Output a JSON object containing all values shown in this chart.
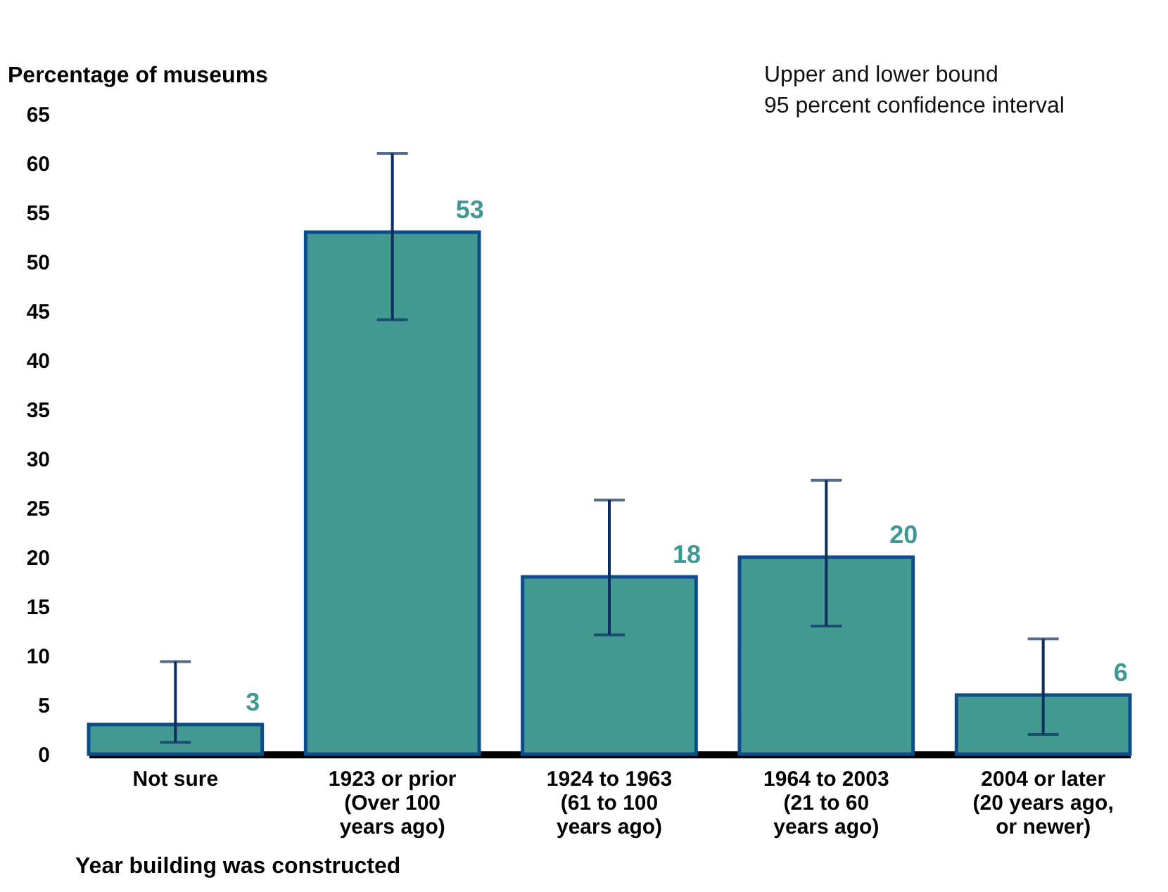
{
  "chart_data": {
    "type": "bar",
    "ylabel": "Percentage of museums",
    "xlabel": "Year building was constructed",
    "categories": [
      "Not sure",
      "1923 or prior\n(Over 100\nyears ago)",
      "1924 to 1963\n(61 to 100\nyears ago)",
      "1964 to 2003\n(21 to 60\nyears ago)",
      "2004 or later\n(20 years ago,\nor newer)"
    ],
    "values": [
      3,
      53,
      18,
      20,
      6
    ],
    "errors": [
      [
        1.2,
        9.4
      ],
      [
        44.1,
        61
      ],
      [
        12.1,
        25.8
      ],
      [
        13.0,
        27.8
      ],
      [
        2.0,
        11.7
      ]
    ],
    "color": "#429a93",
    "data_labels": true,
    "ylim": [
      0,
      65
    ],
    "yticks": [
      0,
      5,
      10,
      15,
      20,
      25,
      30,
      35,
      40,
      45,
      50,
      55,
      60,
      65
    ],
    "grid": false,
    "annotations": [
      "Upper and lower bound",
      "95 percent confidence interval"
    ]
  }
}
